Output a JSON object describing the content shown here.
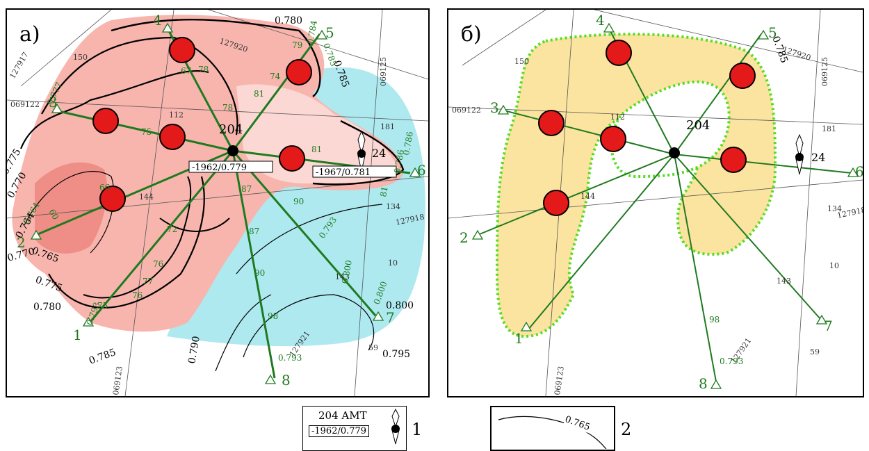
{
  "panel_a": {
    "letter": "а)",
    "station": "204",
    "value_box_main": "-1962/0.779",
    "value_box_right": "-1967/0.781",
    "station_right": "24",
    "grid_labels": [
      "127917",
      "069122",
      "127920",
      "069125",
      "127918",
      "127921",
      "069123",
      "150",
      "112",
      "181",
      "134",
      "10",
      "143",
      "59",
      "144"
    ],
    "isoline_labels": [
      "0.775",
      "0.770",
      "0.764",
      "0.765",
      "0.770",
      "0.775",
      "0.780",
      "0.785",
      "0.790",
      "0.795",
      "0.800",
      "0.780",
      "0.785",
      "0.786",
      "0.777"
    ],
    "profile_numbers": [
      "1",
      "2",
      "3",
      "4",
      "5",
      "6",
      "7",
      "8"
    ],
    "green_values": [
      "60",
      "66",
      "75",
      "72",
      "76",
      "77",
      "76",
      "78",
      "78",
      "81",
      "81",
      "67",
      "74",
      "79",
      "81",
      "87",
      "87",
      "90",
      "90",
      "98",
      "0.793",
      "0.793",
      "0.800",
      "0.800",
      "0.786",
      "0.785",
      "0.784",
      "0.764",
      "0.777",
      "0.786",
      "75",
      "0.793"
    ]
  },
  "panel_b": {
    "letter": "б)",
    "station": "204",
    "station_right": "24",
    "grid_labels": [
      "127920",
      "069125",
      "069122",
      "127918",
      "069123",
      "127921",
      "150",
      "181",
      "134",
      "10",
      "143",
      "59",
      "144",
      "112"
    ],
    "isoline_labels": [
      "0.785"
    ],
    "profile_numbers": [
      "1",
      "2",
      "3",
      "4",
      "5",
      "6",
      "7",
      "8"
    ],
    "green_values": [
      "98",
      "0.793"
    ]
  },
  "legend": {
    "item1_station": "204 AMT",
    "item1_value": "-1962/0.779",
    "item1_number": "1",
    "item2_isoline": "0.765",
    "item2_number": "2"
  },
  "colors": {
    "low_fill": "#f7b5ae",
    "high_fill": "#aee9f0",
    "profile_green": "#1f7a1f",
    "crossing_yellow": "#fbe3a0",
    "boundary_green": "#55dd22",
    "station_red": "#e41a1a"
  }
}
